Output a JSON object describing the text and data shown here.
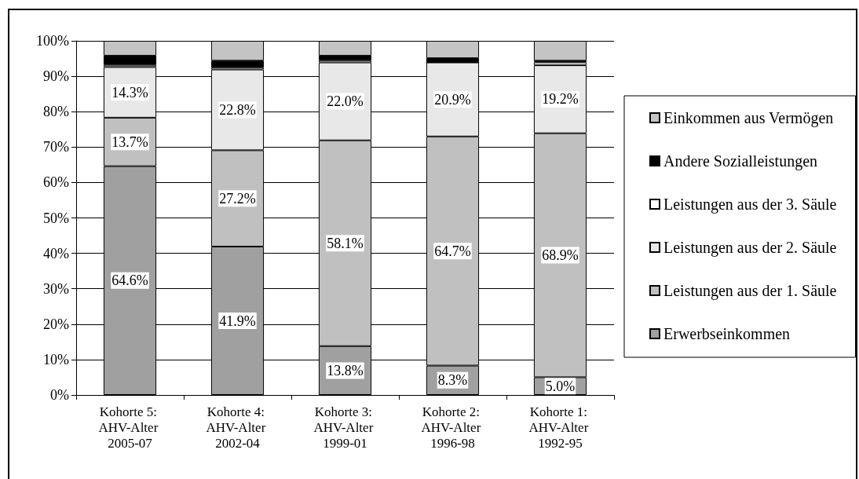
{
  "chart_data": {
    "type": "bar",
    "stacked": true,
    "categories": [
      "Kohorte 5: AHV-Alter 2005-07",
      "Kohorte 4: AHV-Alter 2002-04",
      "Kohorte 3: AHV-Alter 1999-01",
      "Kohorte 2: AHV-Alter 1996-98",
      "Kohorte 1: AHV-Alter 1992-95"
    ],
    "series": [
      {
        "name": "Erwerbseinkommen",
        "color": "#a0a0a0",
        "values": [
          64.6,
          41.9,
          13.8,
          8.3,
          5.0
        ],
        "value_labels": [
          "64.6%",
          "41.9%",
          "13.8%",
          "8.3%",
          "5.0%"
        ]
      },
      {
        "name": "Leistungen aus der 1. Säule",
        "color": "#c0c0c0",
        "values": [
          13.7,
          27.2,
          58.1,
          64.7,
          68.9
        ],
        "value_labels": [
          "13.7%",
          "27.2%",
          "58.1%",
          "64.7%",
          "68.9%"
        ]
      },
      {
        "name": "Leistungen aus der 2. Säule",
        "color": "#e8e8e8",
        "values": [
          14.3,
          22.8,
          22.0,
          20.9,
          19.2
        ],
        "value_labels": [
          "14.3%",
          "22.8%",
          "22.0%",
          "20.9%",
          "19.2%"
        ]
      },
      {
        "name": "Leistungen aus der 3. Säule",
        "color": "#ffffff",
        "values": [
          0.6,
          0.6,
          0.6,
          0.0,
          0.8
        ]
      },
      {
        "name": "Andere Sozialleistungen",
        "color": "#000000",
        "values": [
          2.6,
          1.9,
          1.3,
          1.2,
          0.5
        ]
      },
      {
        "name": "Einkommen aus Vermögen",
        "color": "#c4c4c4",
        "values": [
          4.2,
          5.6,
          4.2,
          4.9,
          5.6
        ]
      }
    ],
    "ylim": [
      0,
      100
    ],
    "yticks": [
      {
        "value": 0,
        "label": "0%"
      },
      {
        "value": 10,
        "label": "10%"
      },
      {
        "value": 20,
        "label": "20%"
      },
      {
        "value": 30,
        "label": "30%"
      },
      {
        "value": 40,
        "label": "40%"
      },
      {
        "value": 50,
        "label": "50%"
      },
      {
        "value": 60,
        "label": "60%"
      },
      {
        "value": 70,
        "label": "70%"
      },
      {
        "value": 80,
        "label": "80%"
      },
      {
        "value": 90,
        "label": "90%"
      },
      {
        "value": 100,
        "label": "100%"
      }
    ],
    "grid": "y",
    "legend": "right"
  }
}
